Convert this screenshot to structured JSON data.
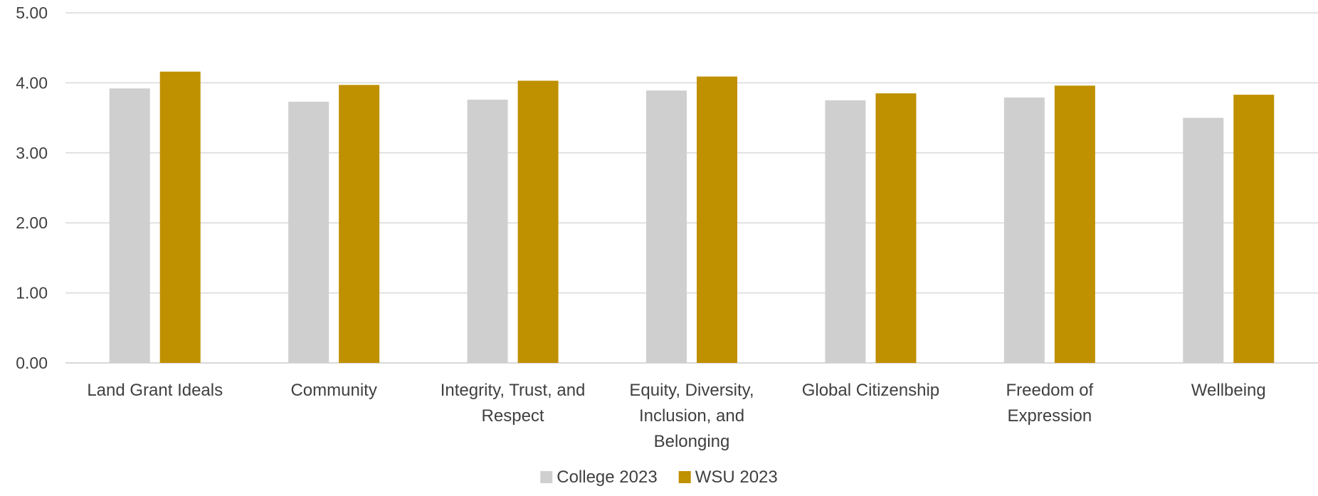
{
  "chart_data": {
    "type": "bar",
    "title": "",
    "xlabel": "",
    "ylabel": "",
    "ylim": [
      0,
      5
    ],
    "y_ticks": [
      "0.00",
      "1.00",
      "2.00",
      "3.00",
      "4.00",
      "5.00"
    ],
    "grid": true,
    "legend_position": "bottom",
    "categories": [
      [
        "Land Grant Ideals"
      ],
      [
        "Community"
      ],
      [
        "Integrity, Trust, and",
        "Respect"
      ],
      [
        "Equity, Diversity,",
        "Inclusion, and",
        "Belonging"
      ],
      [
        "Global Citizenship"
      ],
      [
        "Freedom of",
        "Expression"
      ],
      [
        "Wellbeing"
      ]
    ],
    "series": [
      {
        "name": "College 2023",
        "color": "#d0cfd0",
        "values": [
          3.92,
          3.73,
          3.76,
          3.89,
          3.75,
          3.79,
          3.5
        ]
      },
      {
        "name": "WSU 2023",
        "color": "#bf9000",
        "values": [
          4.16,
          3.97,
          4.03,
          4.09,
          3.85,
          3.96,
          3.83
        ]
      }
    ]
  }
}
